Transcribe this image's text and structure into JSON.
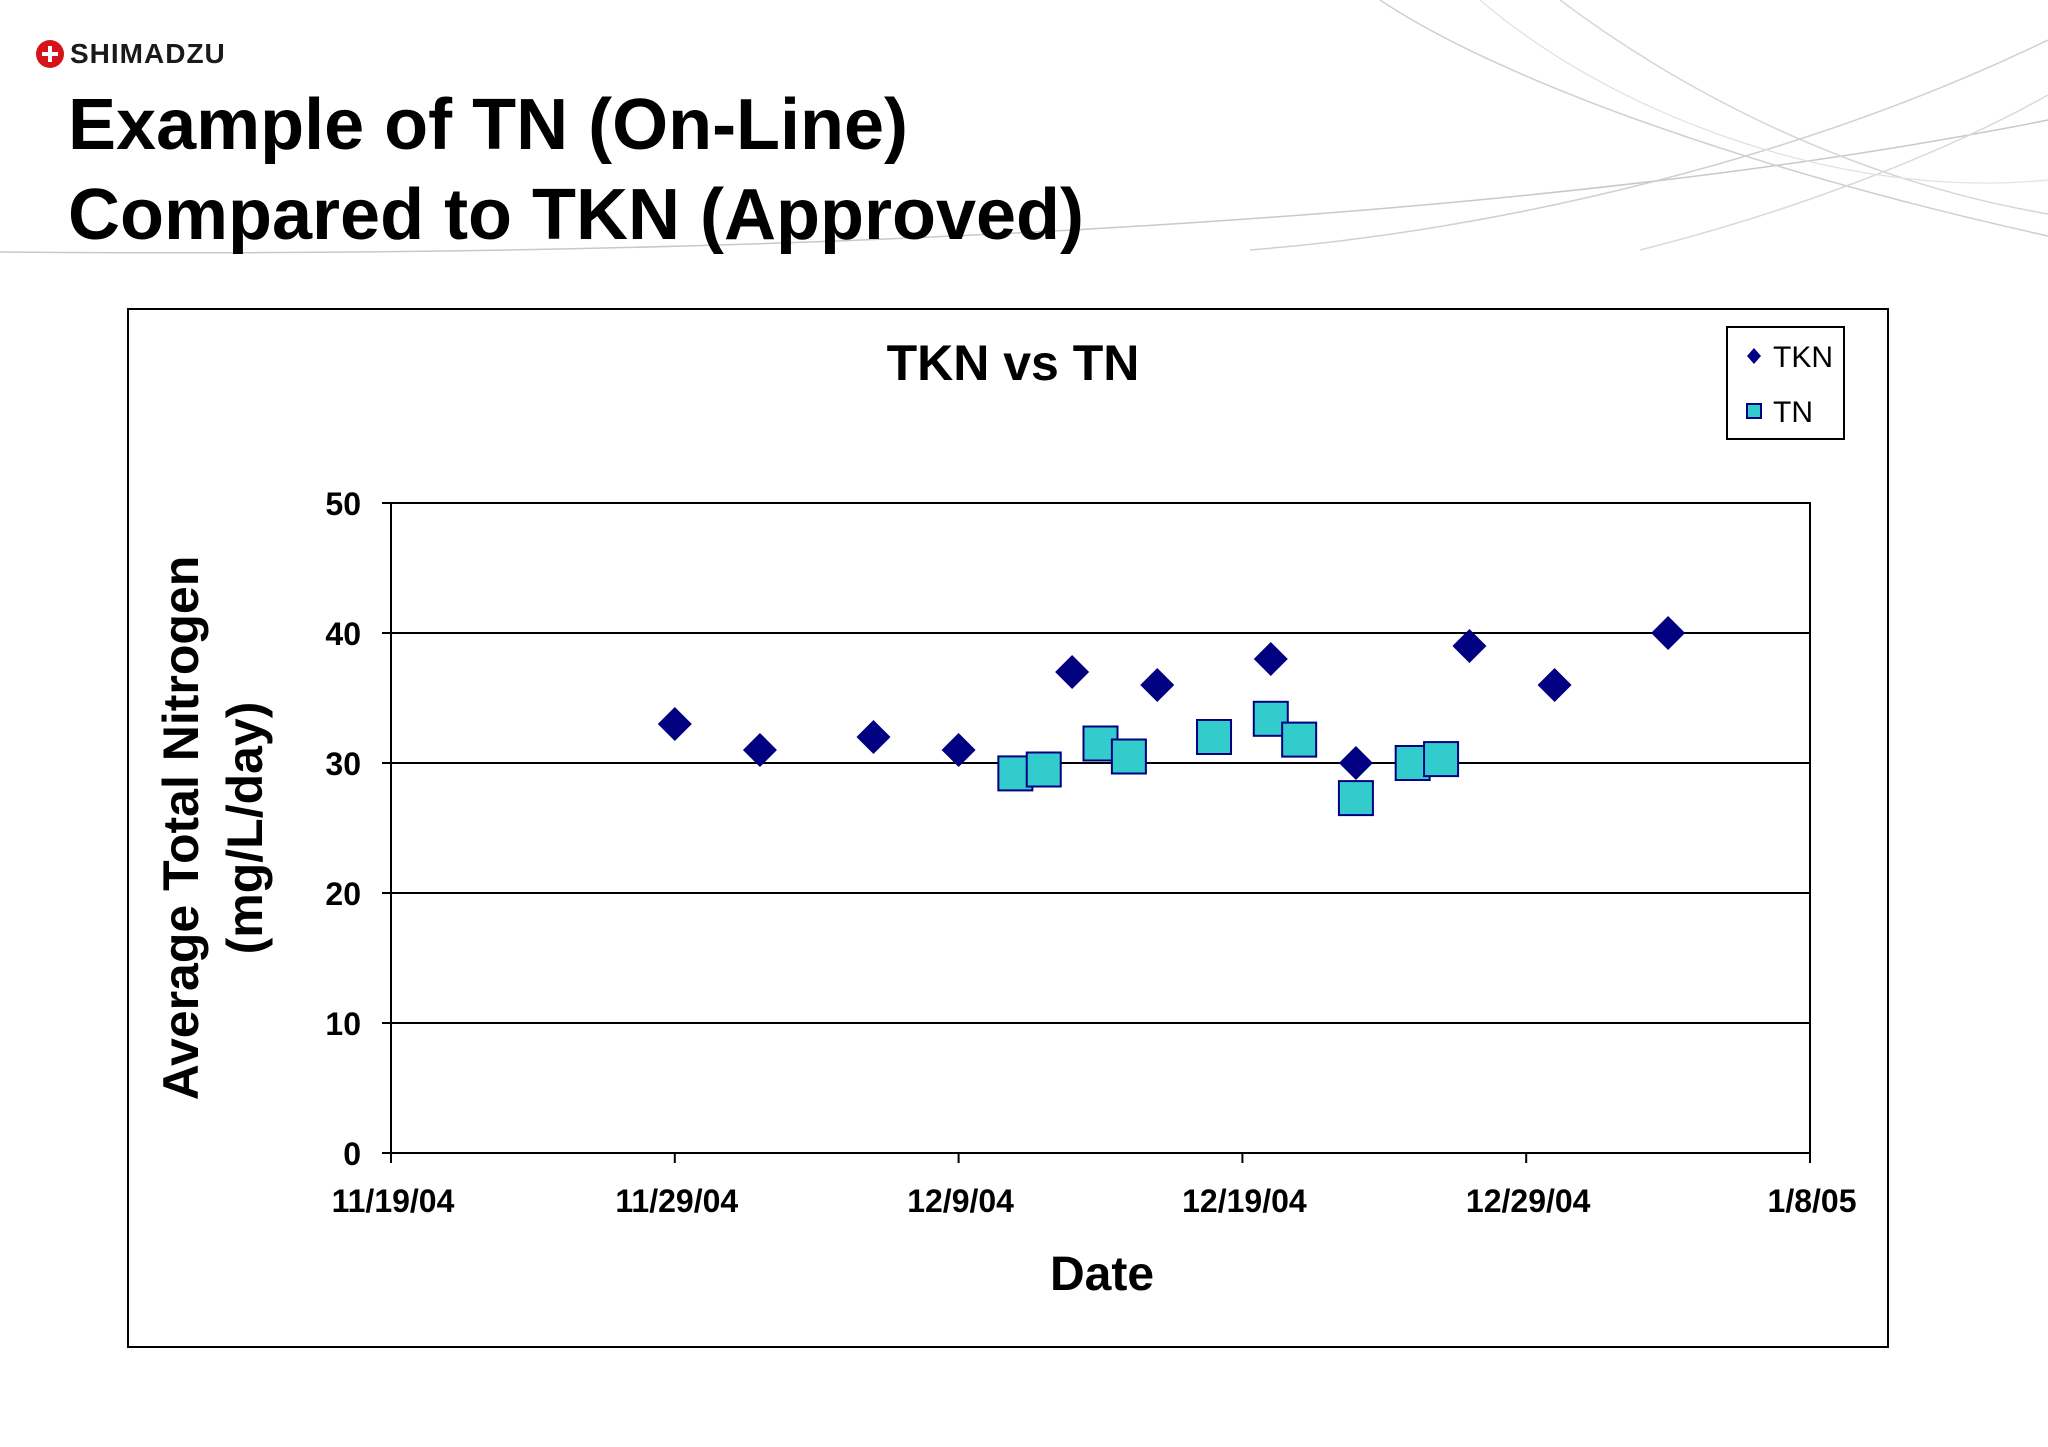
{
  "brand": {
    "name": "SHIMADZU"
  },
  "slide": {
    "title_line1": "Example of TN (On-Line)",
    "title_line2": "Compared to TKN (Approved)"
  },
  "colors": {
    "tkn": "#000080",
    "tn": "#33cccc",
    "logo": "#d7131a",
    "frame": "#000000"
  },
  "chart_data": {
    "type": "scatter",
    "title": "TKN vs TN",
    "xlabel": "Date",
    "ylabel_line1": "Average Total Nitrogen",
    "ylabel_line2": "(mg/L/day)",
    "xlim": [
      "11/19/04",
      "1/8/05"
    ],
    "ylim": [
      0,
      50
    ],
    "x_ticks": [
      "11/19/04",
      "11/29/04",
      "12/9/04",
      "12/19/04",
      "12/29/04",
      "1/8/05"
    ],
    "y_ticks": [
      0,
      10,
      20,
      30,
      40,
      50
    ],
    "grid": true,
    "legend_position": "top-right",
    "series": [
      {
        "name": "TKN",
        "marker": "diamond",
        "points": [
          {
            "x": "11/29/04",
            "y": 33
          },
          {
            "x": "12/2/04",
            "y": 31
          },
          {
            "x": "12/6/04",
            "y": 32
          },
          {
            "x": "12/9/04",
            "y": 31
          },
          {
            "x": "12/13/04",
            "y": 37
          },
          {
            "x": "12/16/04",
            "y": 36
          },
          {
            "x": "12/20/04",
            "y": 38
          },
          {
            "x": "12/23/04",
            "y": 30
          },
          {
            "x": "12/27/04",
            "y": 39
          },
          {
            "x": "12/30/04",
            "y": 36
          },
          {
            "x": "1/3/05",
            "y": 40
          }
        ]
      },
      {
        "name": "TN",
        "marker": "square",
        "points": [
          {
            "x": "12/11/04",
            "y": 29.2
          },
          {
            "x": "12/12/04",
            "y": 29.5
          },
          {
            "x": "12/14/04",
            "y": 31.5
          },
          {
            "x": "12/15/04",
            "y": 30.5
          },
          {
            "x": "12/18/04",
            "y": 32
          },
          {
            "x": "12/20/04",
            "y": 33.4
          },
          {
            "x": "12/21/04",
            "y": 31.8
          },
          {
            "x": "12/23/04",
            "y": 27.3
          },
          {
            "x": "12/25/04",
            "y": 30
          },
          {
            "x": "12/26/04",
            "y": 30.3
          }
        ]
      }
    ]
  }
}
